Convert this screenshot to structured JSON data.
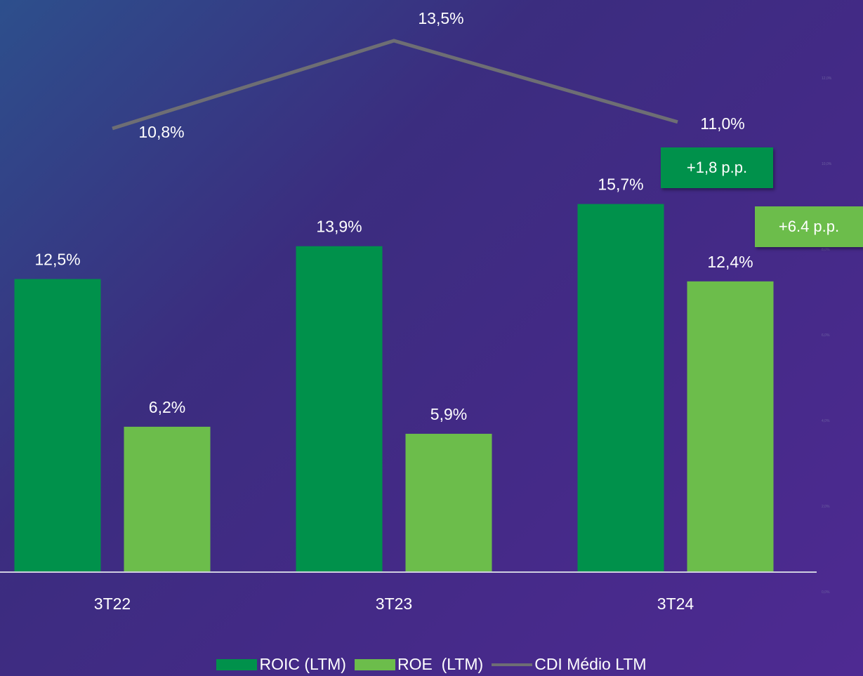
{
  "colors": {
    "roic": "#00914b",
    "roe": "#6cbd4b",
    "cdi": "#6e6e74",
    "axis": "#cfcfe0",
    "tick": "#6b5fa0"
  },
  "callouts": {
    "roic_delta": "+1,8 p.p.",
    "roe_delta": "+6.4 p.p."
  },
  "chart_data": {
    "type": "bar",
    "categories": [
      "3T22",
      "3T23",
      "3T24"
    ],
    "series": [
      {
        "name": "ROIC (LTM)",
        "type": "bar",
        "values": [
          12.5,
          13.9,
          15.7
        ],
        "labels": [
          "12,5%",
          "13,9%",
          "15,7%"
        ]
      },
      {
        "name": "ROE  (LTM)",
        "type": "bar",
        "values": [
          6.2,
          5.9,
          12.4
        ],
        "labels": [
          "6,2%",
          "5,9%",
          "12,4%"
        ]
      },
      {
        "name": "CDI Médio LTM",
        "type": "line",
        "values": [
          10.8,
          13.5,
          11.0
        ],
        "labels": [
          "10,8%",
          "13,5%",
          "11,0%"
        ]
      }
    ],
    "secondary_axis_ticks": [
      "0,0%",
      "2,0%",
      "4,0%",
      "6,0%",
      "8,0%",
      "10,0%",
      "12,0%"
    ],
    "legend": "bottom",
    "grid": false
  }
}
